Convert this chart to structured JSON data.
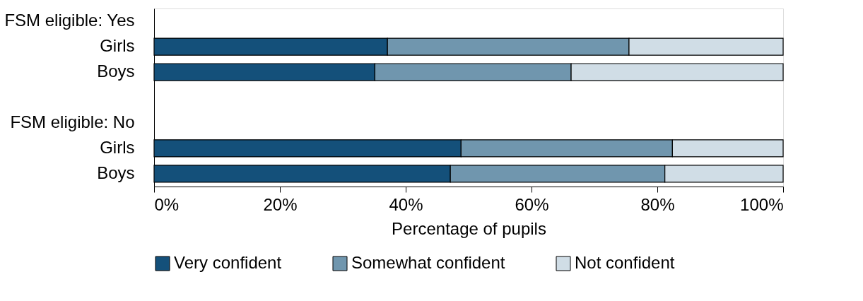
{
  "chart_data": {
    "type": "bar",
    "orientation": "horizontal",
    "stacked": true,
    "categories": [
      "FSM eligible: Yes",
      "Girls",
      "Boys",
      null,
      "FSM eligible: No",
      "Girls",
      "Boys"
    ],
    "series": [
      {
        "name": "Very confident",
        "color": "#14507a",
        "values": [
          null,
          37.1,
          35.1,
          null,
          null,
          48.8,
          47.1
        ]
      },
      {
        "name": "Somewhat confident",
        "color": "#7096ae",
        "values": [
          null,
          38.4,
          31.2,
          null,
          null,
          33.6,
          34.1
        ]
      },
      {
        "name": "Not confident",
        "color": "#d0dde6",
        "values": [
          null,
          24.5,
          33.7,
          null,
          null,
          17.6,
          18.8
        ]
      }
    ],
    "xlabel": "Percentage of pupils",
    "xlim": [
      0,
      100
    ],
    "xticks": [
      {
        "value": 0,
        "label": "0%"
      },
      {
        "value": 20,
        "label": "20%"
      },
      {
        "value": 40,
        "label": "40%"
      },
      {
        "value": 60,
        "label": "60%"
      },
      {
        "value": 80,
        "label": "80%"
      },
      {
        "value": 100,
        "label": "100%"
      }
    ],
    "grid": false,
    "legend": "bottom"
  }
}
